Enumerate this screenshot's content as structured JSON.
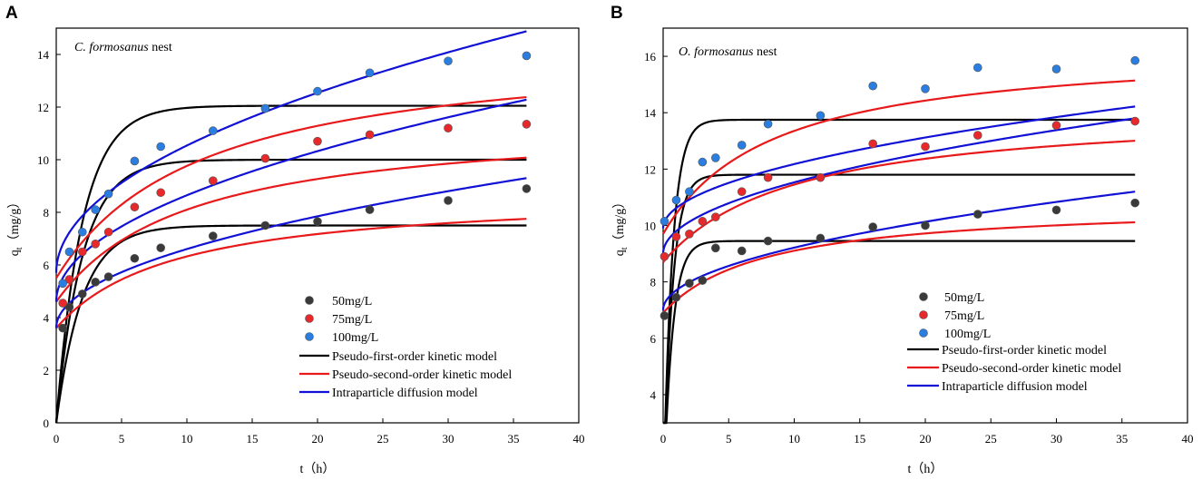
{
  "chart_data": [
    {
      "panel": "A",
      "type": "scatter",
      "title_italic": "C. formosanus",
      "title_rest": " nest",
      "xlabel": "t（h）",
      "ylabel_main": "q",
      "ylabel_sub": "t",
      "ylabel_unit": "（mg/g）",
      "xlim": [
        0,
        40
      ],
      "ylim": [
        0,
        15
      ],
      "xticks": [
        0,
        5,
        10,
        15,
        20,
        25,
        30,
        35,
        40
      ],
      "yticks": [
        0,
        2,
        4,
        6,
        8,
        10,
        12,
        14
      ],
      "series": [
        {
          "name": "50mg/L",
          "color": "#3a3a3a",
          "x": [
            0.5,
            1,
            2,
            3,
            4,
            6,
            8,
            12,
            16,
            20,
            24,
            30,
            36
          ],
          "y": [
            3.6,
            4.4,
            4.9,
            5.35,
            5.55,
            6.25,
            6.65,
            7.1,
            7.5,
            7.65,
            8.1,
            8.45,
            8.9
          ]
        },
        {
          "name": "75mg/L",
          "color": "#e8292b",
          "x": [
            0.5,
            1,
            2,
            3,
            4,
            6,
            8,
            12,
            16,
            20,
            24,
            30,
            36
          ],
          "y": [
            4.55,
            5.45,
            6.5,
            6.8,
            7.25,
            8.2,
            8.75,
            9.2,
            10.05,
            10.7,
            10.95,
            11.2,
            11.35
          ]
        },
        {
          "name": "100mg/L",
          "color": "#2a7de1",
          "x": [
            0.5,
            1,
            2,
            3,
            4,
            6,
            8,
            12,
            16,
            20,
            24,
            30,
            36
          ],
          "y": [
            5.3,
            6.5,
            7.25,
            8.1,
            8.7,
            9.95,
            10.5,
            11.1,
            11.95,
            12.6,
            13.3,
            13.75,
            13.95
          ]
        }
      ],
      "models": {
        "pfo": [
          {
            "qe": 7.5,
            "k": 0.5
          },
          {
            "qe": 10.0,
            "k": 0.5
          },
          {
            "qe": 12.05,
            "k": 0.5
          }
        ],
        "pso": [
          {
            "q0": 3.6,
            "qinf": 8.8,
            "k": 0.11
          },
          {
            "q0": 4.6,
            "qinf": 11.6,
            "k": 0.1
          },
          {
            "q0": 5.5,
            "qinf": 14.5,
            "k": 0.09
          }
        ],
        "ipd": [
          {
            "c": 3.6,
            "k": 0.95
          },
          {
            "c": 4.6,
            "k": 1.28
          },
          {
            "c": 5.7,
            "k": 1.53
          }
        ]
      },
      "legend": [
        "50mg/L",
        "75mg/L",
        "100mg/L",
        "Pseudo-first-order kinetic model",
        "Pseudo-second-order kinetic model",
        "Intraparticle diffusion model"
      ]
    },
    {
      "panel": "B",
      "type": "scatter",
      "title_italic": "O. formosanus",
      "title_rest": " nest",
      "xlabel": "t（h）",
      "ylabel_main": "q",
      "ylabel_sub": "t",
      "ylabel_unit": "（mg/g）",
      "xlim": [
        0,
        40
      ],
      "ylim": [
        3,
        17
      ],
      "xticks": [
        0,
        5,
        10,
        15,
        20,
        25,
        30,
        35,
        40
      ],
      "yticks": [
        4,
        6,
        8,
        10,
        12,
        14,
        16
      ],
      "series": [
        {
          "name": "50mg/L",
          "color": "#3a3a3a",
          "x": [
            0.1,
            1,
            2,
            3,
            4,
            6,
            8,
            12,
            16,
            20,
            24,
            30,
            36
          ],
          "y": [
            6.8,
            7.45,
            7.95,
            8.05,
            9.2,
            9.1,
            9.45,
            9.55,
            9.95,
            10.0,
            10.4,
            10.55,
            10.8
          ]
        },
        {
          "name": "75mg/L",
          "color": "#e8292b",
          "x": [
            0.1,
            1,
            2,
            3,
            4,
            6,
            8,
            12,
            16,
            20,
            24,
            30,
            36
          ],
          "y": [
            8.9,
            9.6,
            9.7,
            10.15,
            10.3,
            11.2,
            11.7,
            11.7,
            12.9,
            12.8,
            13.2,
            13.55,
            13.7
          ]
        },
        {
          "name": "100mg/L",
          "color": "#2a7de1",
          "x": [
            0.1,
            1,
            2,
            3,
            4,
            6,
            8,
            12,
            16,
            20,
            24,
            30,
            36
          ],
          "y": [
            10.15,
            10.9,
            11.2,
            12.25,
            12.4,
            12.85,
            13.6,
            13.9,
            14.95,
            14.85,
            15.6,
            15.55,
            15.85
          ]
        }
      ],
      "models": {
        "pfo": [
          {
            "qe": 9.45,
            "k": 1.5
          },
          {
            "qe": 11.8,
            "k": 1.5
          },
          {
            "qe": 13.75,
            "k": 1.5
          }
        ],
        "pso": [
          {
            "q0": 6.9,
            "qinf": 10.8,
            "k": 0.13
          },
          {
            "q0": 8.7,
            "qinf": 14.2,
            "k": 0.1
          },
          {
            "q0": 9.7,
            "qinf": 16.4,
            "k": 0.12
          }
        ],
        "ipd": [
          {
            "c": 7.0,
            "k": 0.7
          },
          {
            "c": 9.0,
            "k": 0.8
          },
          {
            "c": 9.9,
            "k": 0.72
          }
        ]
      },
      "legend": [
        "50mg/L",
        "75mg/L",
        "100mg/L",
        "Pseudo-first-order kinetic model",
        "Pseudo-second-order kinetic model",
        "Intraparticle diffusion model"
      ]
    }
  ],
  "colors": {
    "pfo": "#000000",
    "pso": "#e8191b",
    "ipd": "#1111d6",
    "dot_stroke": "#555555"
  }
}
